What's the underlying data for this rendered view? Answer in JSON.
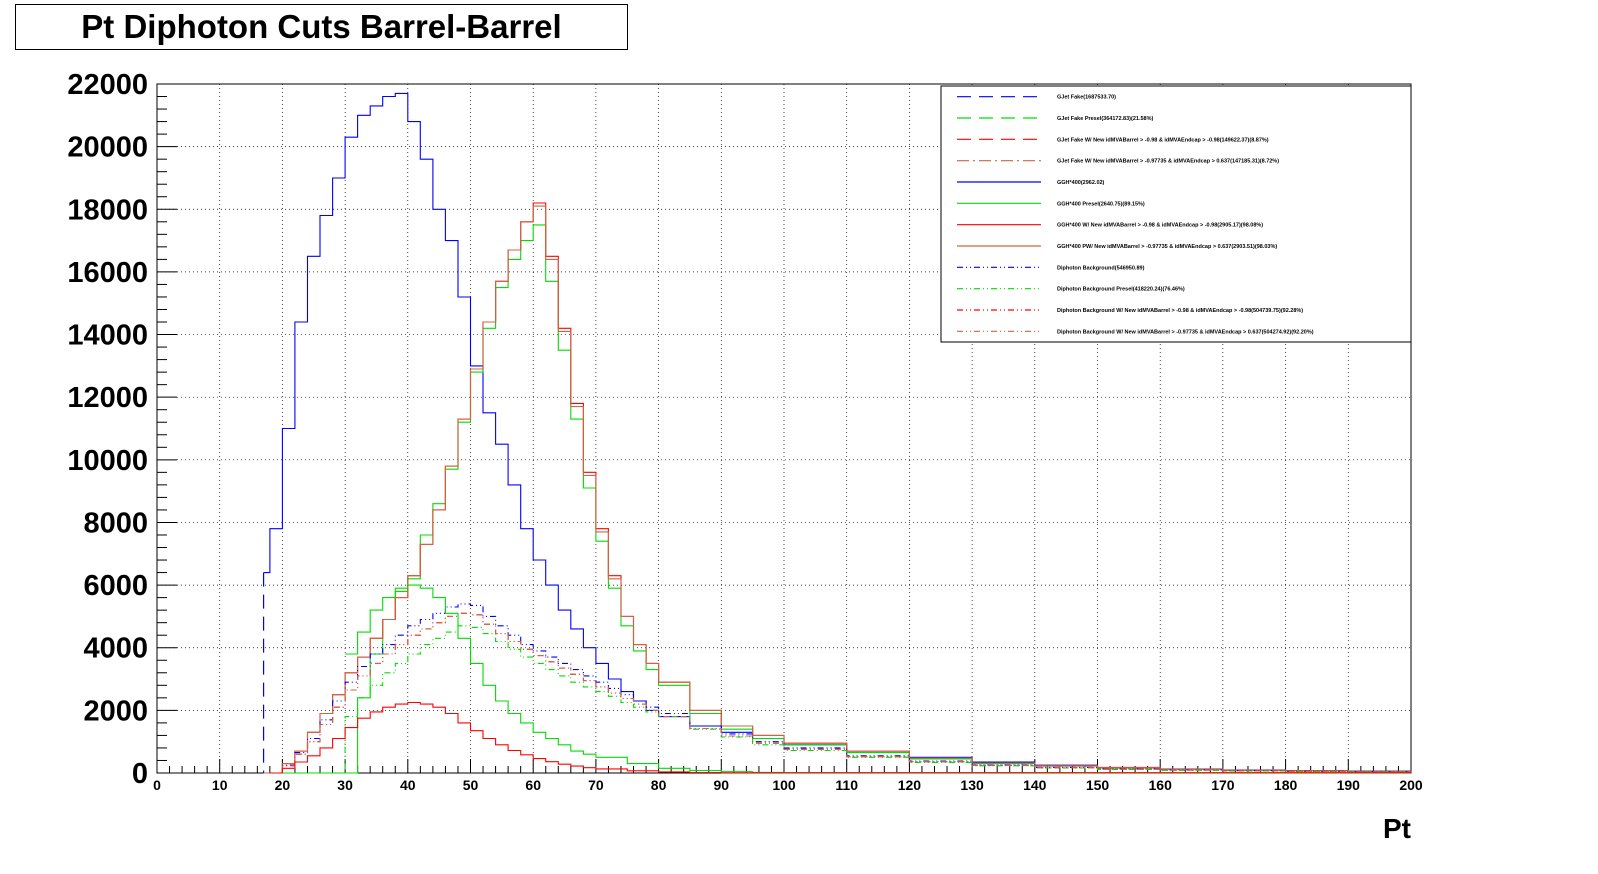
{
  "chart_data": {
    "type": "line",
    "title": "Pt Diphoton Cuts Barrel-Barrel",
    "xlabel": "Pt",
    "ylabel": "",
    "xlim": [
      0,
      200
    ],
    "ylim": [
      0,
      22000
    ],
    "x_ticks": [
      0,
      10,
      20,
      30,
      40,
      50,
      60,
      70,
      80,
      90,
      100,
      110,
      120,
      130,
      140,
      150,
      160,
      170,
      180,
      190,
      200
    ],
    "y_ticks": [
      0,
      2000,
      4000,
      6000,
      8000,
      10000,
      12000,
      14000,
      16000,
      18000,
      20000,
      22000
    ],
    "grid": true,
    "legend_position": "top-right",
    "colors": {
      "blue": "#0000ff",
      "green": "#00dd00",
      "red": "#ff0000",
      "brown": "#cc6644"
    },
    "series": [
      {
        "name": "GJet Fake(1687533.70)",
        "color": "#0000ff",
        "style": "dashed",
        "x": [
          17,
          18,
          20,
          22,
          24,
          26,
          28,
          30,
          32,
          34,
          36,
          38,
          40,
          42,
          44,
          46,
          48,
          50,
          52,
          54,
          56,
          58,
          60,
          62,
          64,
          66,
          68,
          70,
          72,
          74,
          76,
          78,
          80,
          85,
          90,
          95,
          100,
          110,
          120,
          130,
          140,
          150,
          160,
          170,
          180,
          190,
          200
        ],
        "values": [
          0,
          0,
          0,
          0,
          0,
          0,
          0,
          0,
          0,
          0,
          0,
          0,
          0,
          0,
          0,
          0,
          0,
          0,
          0,
          0,
          0,
          0,
          0,
          0,
          0,
          0,
          0,
          0,
          0,
          0,
          0,
          0,
          0,
          0,
          0,
          0,
          0,
          0,
          0,
          0,
          0,
          0,
          0,
          0,
          0,
          0,
          0
        ]
      },
      {
        "name": "GJet Fake Presel(364172.83)(21.58%)",
        "color": "#00dd00",
        "style": "dashed",
        "x": [
          17,
          200
        ],
        "values": [
          0,
          0
        ]
      },
      {
        "name": "GJet Fake W/ New idMVABarrel > -0.98 & idMVAEndcap > -0.98(149622.37)(8.87%)",
        "color": "#ff0000",
        "style": "dashed",
        "x": [
          17,
          200
        ],
        "values": [
          0,
          0
        ]
      },
      {
        "name": "GJet Fake W/ New idMVABarrel > -0.97735 & idMVAEndcap > 0.637(147185.31)(8.72%)",
        "color": "#cc6644",
        "style": "dashdot",
        "x": [
          17,
          200
        ],
        "values": [
          0,
          0
        ]
      },
      {
        "name": "GGH*400(2962.02)",
        "color": "#0000ff",
        "style": "solid",
        "x": [
          17,
          18,
          20,
          22,
          24,
          26,
          28,
          30,
          32,
          34,
          36,
          38,
          40,
          42,
          44,
          46,
          48,
          50,
          52,
          54,
          56,
          58,
          60,
          62,
          64,
          66,
          68,
          70,
          72,
          74,
          76,
          78,
          80,
          85,
          90,
          95,
          100,
          110,
          120,
          130,
          140,
          150,
          160,
          170,
          180,
          190,
          200
        ],
        "values": [
          6400,
          7800,
          11000,
          14400,
          16500,
          17800,
          19000,
          20300,
          21000,
          21300,
          21600,
          21700,
          20800,
          19600,
          18000,
          17000,
          15200,
          13000,
          11500,
          10500,
          9200,
          7800,
          6800,
          6000,
          5200,
          4600,
          4000,
          3500,
          3000,
          2600,
          2300,
          2000,
          1800,
          1500,
          1300,
          1100,
          900,
          700,
          500,
          350,
          250,
          180,
          130,
          100,
          80,
          60,
          40
        ]
      },
      {
        "name": "GGH*400 Presel(2640.75)(89.15%)",
        "color": "#00dd00",
        "style": "solid",
        "x": [
          17,
          18,
          20,
          22,
          24,
          26,
          28,
          30,
          32,
          34,
          36,
          38,
          40,
          42,
          44,
          46,
          48,
          50,
          52,
          54,
          56,
          58,
          60,
          62,
          64,
          66,
          68,
          70,
          72,
          74,
          76,
          78,
          80,
          85,
          90,
          95,
          100,
          110,
          120,
          130,
          140,
          150,
          160,
          170,
          180,
          190,
          200
        ],
        "values": [
          0,
          0,
          0,
          0,
          0,
          0,
          0,
          0,
          2400,
          3800,
          4900,
          5800,
          6200,
          7600,
          8600,
          9700,
          11200,
          12800,
          14200,
          15500,
          16400,
          17000,
          17500,
          15700,
          13500,
          11300,
          9100,
          7400,
          5900,
          4700,
          3900,
          3300,
          2800,
          1900,
          1400,
          1100,
          900,
          650,
          450,
          300,
          220,
          160,
          120,
          90,
          70,
          50,
          30
        ]
      },
      {
        "name": "GGH*400 W/ New idMVABarrel > -0.98 & idMVAEndcap > -0.98(2905.17)(98.08%)",
        "color": "#ff0000",
        "style": "solid",
        "x": [
          17,
          18,
          20,
          22,
          24,
          26,
          28,
          30,
          32,
          34,
          36,
          38,
          40,
          42,
          44,
          46,
          48,
          50,
          52,
          54,
          56,
          58,
          60,
          62,
          64,
          66,
          68,
          70,
          72,
          74,
          76,
          78,
          80,
          85,
          90,
          95,
          100,
          110,
          120,
          130,
          140,
          150,
          160,
          170,
          180,
          190,
          200
        ],
        "values": [
          0,
          0,
          300,
          700,
          1300,
          1900,
          2500,
          3200,
          3700,
          4300,
          4900,
          5600,
          6300,
          7300,
          8400,
          9800,
          11300,
          12900,
          14400,
          15700,
          16700,
          17600,
          18200,
          16500,
          14200,
          11800,
          9600,
          7800,
          6300,
          5000,
          4100,
          3500,
          2900,
          2000,
          1500,
          1200,
          950,
          700,
          480,
          320,
          230,
          170,
          125,
          95,
          72,
          52,
          32
        ]
      },
      {
        "name": "GGH*400 PW/ New idMVABarrel > -0.97735 & idMVAEndcap > 0.637(2903.51)(98.03%)",
        "color": "#cc6644",
        "style": "solid",
        "x": [
          17,
          18,
          20,
          22,
          24,
          26,
          28,
          30,
          32,
          34,
          36,
          38,
          40,
          42,
          44,
          46,
          48,
          50,
          52,
          54,
          56,
          58,
          60,
          62,
          64,
          66,
          68,
          70,
          72,
          74,
          76,
          78,
          80,
          85,
          90,
          95,
          100,
          110,
          120,
          130,
          140,
          150,
          160,
          170,
          180,
          190,
          200
        ],
        "values": [
          0,
          0,
          300,
          700,
          1300,
          1900,
          2500,
          3200,
          3700,
          4300,
          4900,
          5600,
          6300,
          7300,
          8400,
          9800,
          11300,
          12900,
          14400,
          15700,
          16700,
          17600,
          18100,
          16400,
          14100,
          11700,
          9500,
          7700,
          6200,
          5000,
          4100,
          3500,
          2900,
          2000,
          1500,
          1200,
          950,
          700,
          480,
          320,
          230,
          170,
          125,
          95,
          72,
          52,
          32
        ]
      },
      {
        "name": "Diphoton Background(546950.89)",
        "color": "#0000ff",
        "style": "dashdotdot",
        "x": [
          17,
          18,
          20,
          22,
          24,
          26,
          28,
          30,
          32,
          34,
          36,
          38,
          40,
          42,
          44,
          46,
          48,
          50,
          52,
          54,
          56,
          58,
          60,
          62,
          64,
          66,
          68,
          70,
          72,
          74,
          76,
          78,
          80,
          85,
          90,
          95,
          100,
          110,
          120,
          130,
          140,
          150,
          160,
          170,
          180,
          190,
          200
        ],
        "values": [
          0,
          0,
          250,
          650,
          1100,
          1700,
          2300,
          2900,
          3400,
          3800,
          4100,
          4400,
          4700,
          4900,
          5100,
          5300,
          5400,
          5350,
          5000,
          4700,
          4400,
          4100,
          3900,
          3700,
          3500,
          3300,
          3100,
          2900,
          2700,
          2500,
          2300,
          2100,
          1900,
          1500,
          1250,
          1000,
          800,
          550,
          380,
          260,
          180,
          130,
          100,
          75,
          55,
          40,
          30
        ]
      },
      {
        "name": "Diphoton Background Presel(418220.24)(76.46%)",
        "color": "#00dd00",
        "style": "dashdotdot",
        "x": [
          17,
          18,
          20,
          22,
          24,
          26,
          28,
          30,
          32,
          34,
          36,
          38,
          40,
          42,
          44,
          46,
          48,
          50,
          52,
          54,
          56,
          58,
          60,
          62,
          64,
          66,
          68,
          70,
          72,
          74,
          76,
          78,
          80,
          85,
          90,
          95,
          100,
          110,
          120,
          130,
          140,
          150,
          160,
          170,
          180,
          190,
          200
        ],
        "values": [
          0,
          0,
          0,
          0,
          0,
          0,
          0,
          1800,
          2400,
          2800,
          3200,
          3500,
          3800,
          4100,
          4300,
          4500,
          4700,
          4650,
          4450,
          4200,
          3950,
          3700,
          3500,
          3300,
          3100,
          2900,
          2750,
          2600,
          2450,
          2250,
          2100,
          1950,
          1800,
          1400,
          1150,
          900,
          720,
          500,
          340,
          230,
          160,
          115,
          85,
          65,
          48,
          35,
          25
        ]
      },
      {
        "name": "Diphoton Background W/ New idMVABarrel > -0.98 & idMVAEndcap > -0.98(504739.75)(92.28%)",
        "color": "#ff0000",
        "style": "dashdotdot",
        "x": [
          17,
          18,
          20,
          22,
          24,
          26,
          28,
          30,
          32,
          34,
          36,
          38,
          40,
          42,
          44,
          46,
          48,
          50,
          52,
          54,
          56,
          58,
          60,
          62,
          64,
          66,
          68,
          70,
          72,
          74,
          76,
          78,
          80,
          85,
          90,
          95,
          100,
          110,
          120,
          130,
          140,
          150,
          160,
          170,
          180,
          190,
          200
        ],
        "values": [
          0,
          0,
          230,
          600,
          1000,
          1550,
          2100,
          2650,
          3100,
          3500,
          3800,
          4100,
          4400,
          4600,
          4800,
          5000,
          5100,
          5050,
          4750,
          4450,
          4200,
          3950,
          3750,
          3550,
          3350,
          3150,
          2950,
          2750,
          2550,
          2380,
          2200,
          2000,
          1800,
          1420,
          1180,
          950,
          760,
          520,
          360,
          245,
          170,
          122,
          92,
          70,
          52,
          38,
          27
        ]
      },
      {
        "name": "Diphoton Background W/ New idMVABarrel > -0.97735 & idMVAEndcap > 0.637(504274.92)(92.20%)",
        "color": "#cc6644",
        "style": "dashdotdot",
        "x": [
          17,
          18,
          20,
          22,
          24,
          26,
          28,
          30,
          32,
          34,
          36,
          38,
          40,
          42,
          44,
          46,
          48,
          50,
          52,
          54,
          56,
          58,
          60,
          62,
          64,
          66,
          68,
          70,
          72,
          74,
          76,
          78,
          80,
          85,
          90,
          95,
          100,
          110,
          120,
          130,
          140,
          150,
          160,
          170,
          180,
          190,
          200
        ],
        "values": [
          0,
          0,
          230,
          600,
          1000,
          1550,
          2100,
          2650,
          3100,
          3500,
          3800,
          4100,
          4400,
          4600,
          4800,
          5000,
          5100,
          5050,
          4750,
          4450,
          4200,
          3950,
          3750,
          3550,
          3350,
          3150,
          2950,
          2750,
          2550,
          2380,
          2200,
          2000,
          1800,
          1420,
          1180,
          950,
          760,
          520,
          360,
          245,
          170,
          122,
          92,
          70,
          52,
          38,
          27
        ]
      },
      {
        "name": "",
        "color": "#00dd00",
        "style": "solid",
        "x": [
          30,
          32,
          34,
          36,
          38,
          40,
          42,
          44,
          46,
          48,
          50,
          52,
          54,
          56,
          58,
          60,
          62,
          64,
          66,
          68,
          70,
          75,
          80,
          85,
          90,
          95,
          100
        ],
        "values": [
          3800,
          4500,
          5200,
          5600,
          5900,
          6000,
          5900,
          5600,
          5100,
          4300,
          3500,
          2800,
          2300,
          1900,
          1600,
          1300,
          1100,
          900,
          700,
          600,
          500,
          300,
          150,
          80,
          40,
          20,
          10
        ]
      },
      {
        "name": "",
        "color": "#ff0000",
        "style": "solid",
        "x": [
          18,
          20,
          22,
          24,
          26,
          28,
          30,
          32,
          34,
          36,
          38,
          40,
          42,
          44,
          46,
          48,
          50,
          52,
          54,
          56,
          58,
          60,
          62,
          64,
          66,
          68,
          70,
          75,
          80,
          85,
          90
        ],
        "values": [
          0,
          150,
          350,
          550,
          800,
          1100,
          1450,
          1750,
          1950,
          2100,
          2200,
          2250,
          2200,
          2100,
          1900,
          1600,
          1350,
          1100,
          900,
          720,
          580,
          460,
          360,
          280,
          220,
          170,
          130,
          70,
          35,
          15,
          5
        ]
      }
    ]
  }
}
